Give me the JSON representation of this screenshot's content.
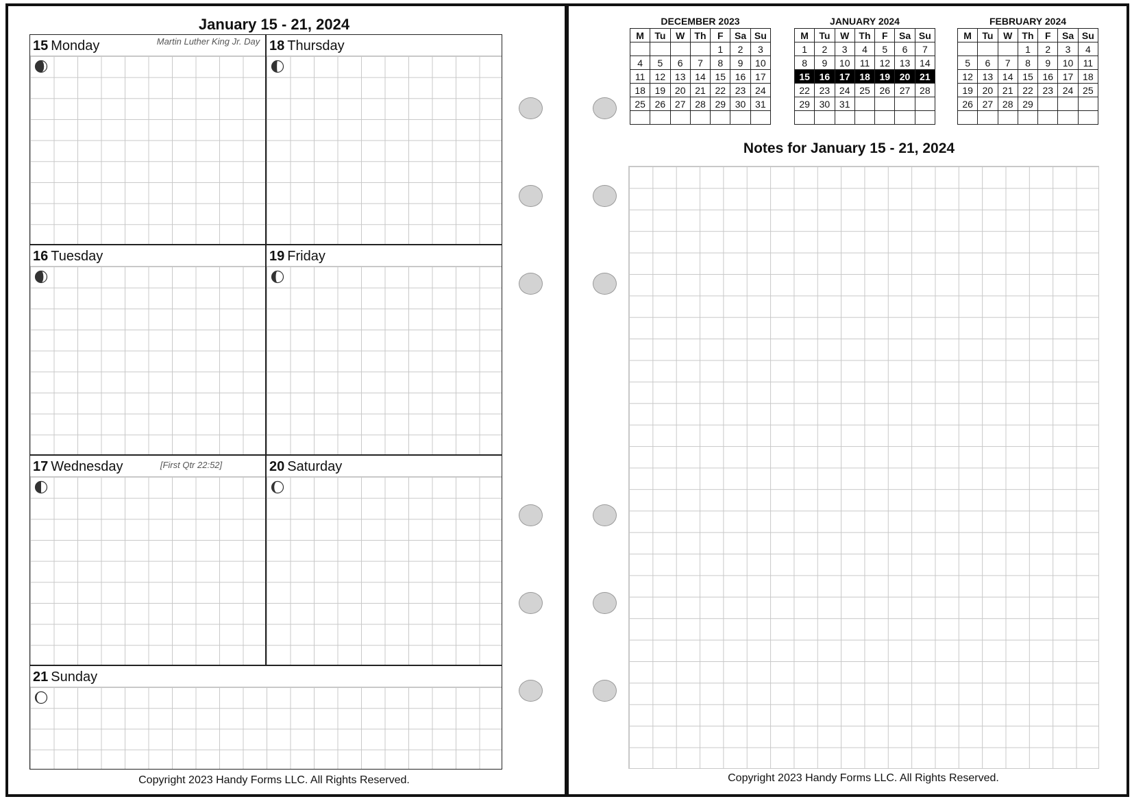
{
  "left_page": {
    "title": "January 15 - 21, 2024",
    "days": [
      {
        "num": "15",
        "name": "Monday",
        "note": "Martin Luther King Jr. Day",
        "moon_illumination": 0.25
      },
      {
        "num": "18",
        "name": "Thursday",
        "note": "",
        "moon_illumination": 0.55
      },
      {
        "num": "16",
        "name": "Tuesday",
        "note": "",
        "moon_illumination": 0.3
      },
      {
        "num": "19",
        "name": "Friday",
        "note": "",
        "moon_illumination": 0.65
      },
      {
        "num": "17",
        "name": "Wednesday",
        "note": "[First Qtr 22:52]",
        "moon_illumination": 0.5
      },
      {
        "num": "20",
        "name": "Saturday",
        "note": "",
        "moon_illumination": 0.78
      },
      {
        "num": "21",
        "name": "Sunday",
        "note": "",
        "moon_illumination": 0.88
      }
    ],
    "footer": "Copyright 2023 Handy Forms LLC. All Rights Reserved."
  },
  "right_page": {
    "weekday_headers": [
      "M",
      "Tu",
      "W",
      "Th",
      "F",
      "Sa",
      "Su"
    ],
    "mini_calendars": [
      {
        "title": "DECEMBER 2023",
        "weeks": [
          [
            "",
            "",
            "",
            "",
            "1",
            "2",
            "3"
          ],
          [
            "4",
            "5",
            "6",
            "7",
            "8",
            "9",
            "10"
          ],
          [
            "11",
            "12",
            "13",
            "14",
            "15",
            "16",
            "17"
          ],
          [
            "18",
            "19",
            "20",
            "21",
            "22",
            "23",
            "24"
          ],
          [
            "25",
            "26",
            "27",
            "28",
            "29",
            "30",
            "31"
          ],
          [
            "",
            "",
            "",
            "",
            "",
            "",
            ""
          ]
        ],
        "highlight_week": -1
      },
      {
        "title": "JANUARY 2024",
        "weeks": [
          [
            "1",
            "2",
            "3",
            "4",
            "5",
            "6",
            "7"
          ],
          [
            "8",
            "9",
            "10",
            "11",
            "12",
            "13",
            "14"
          ],
          [
            "15",
            "16",
            "17",
            "18",
            "19",
            "20",
            "21"
          ],
          [
            "22",
            "23",
            "24",
            "25",
            "26",
            "27",
            "28"
          ],
          [
            "29",
            "30",
            "31",
            "",
            "",
            "",
            ""
          ],
          [
            "",
            "",
            "",
            "",
            "",
            "",
            ""
          ]
        ],
        "highlight_week": 2
      },
      {
        "title": "FEBRUARY 2024",
        "weeks": [
          [
            "",
            "",
            "",
            "1",
            "2",
            "3",
            "4"
          ],
          [
            "5",
            "6",
            "7",
            "8",
            "9",
            "10",
            "11"
          ],
          [
            "12",
            "13",
            "14",
            "15",
            "16",
            "17",
            "18"
          ],
          [
            "19",
            "20",
            "21",
            "22",
            "23",
            "24",
            "25"
          ],
          [
            "26",
            "27",
            "28",
            "29",
            "",
            "",
            ""
          ],
          [
            "",
            "",
            "",
            "",
            "",
            "",
            ""
          ]
        ],
        "highlight_week": -1
      }
    ],
    "notes_title": "Notes for January 15 - 21, 2024",
    "footer": "Copyright 2023 Handy Forms LLC. All Rights Reserved."
  },
  "colors": {
    "border": "#111111",
    "grid": "#c8c8c8",
    "hole": "#d3d3d3",
    "highlight": "#000000"
  }
}
